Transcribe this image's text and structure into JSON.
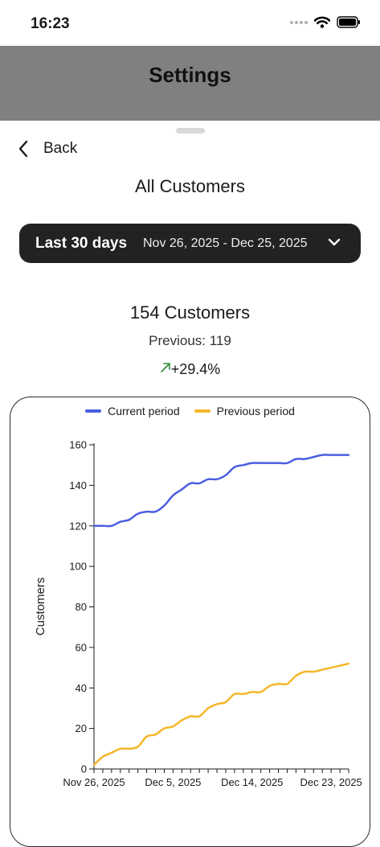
{
  "status_bar": {
    "time": "16:23"
  },
  "header": {
    "title": "Settings"
  },
  "nav": {
    "back_label": "Back"
  },
  "page": {
    "title": "All Customers"
  },
  "date_range": {
    "label": "Last 30 days",
    "dates": "Nov 26, 2025 - Dec 25, 2025"
  },
  "metric": {
    "count_text": "154 Customers",
    "previous_text": "Previous: 119",
    "change_text": "+29.4%",
    "trend": "up"
  },
  "colors": {
    "current": "#4a5ee0",
    "previous": "#f5b62a",
    "trend_up": "#2e8b3a",
    "pill": "#222222",
    "header": "#808080"
  },
  "chart_data": {
    "type": "line",
    "ylabel": "Customers",
    "xlabel": "",
    "ylim": [
      0,
      160
    ],
    "yticks": [
      0,
      20,
      40,
      60,
      80,
      100,
      120,
      140,
      160
    ],
    "xtick_labels": [
      "Nov 26, 2025",
      "Dec 5, 2025",
      "Dec 14, 2025",
      "Dec 23, 2025"
    ],
    "xtick_days": [
      0,
      9,
      18,
      27
    ],
    "legend_position": "top",
    "series": [
      {
        "name": "Current period",
        "color": "#4a5ee0",
        "values": [
          120,
          120,
          120,
          122,
          123,
          126,
          127,
          127,
          130,
          135,
          138,
          141,
          141,
          143,
          143,
          145,
          149,
          150,
          151,
          151,
          151,
          151,
          151,
          153,
          153,
          154,
          155,
          155,
          155,
          155
        ]
      },
      {
        "name": "Previous period",
        "color": "#f5b62a",
        "values": [
          2,
          6,
          8,
          10,
          10,
          11,
          16,
          17,
          20,
          21,
          24,
          26,
          26,
          30,
          32,
          33,
          37,
          37,
          38,
          38,
          41,
          42,
          42,
          46,
          48,
          48,
          49,
          50,
          51,
          52
        ]
      }
    ]
  }
}
